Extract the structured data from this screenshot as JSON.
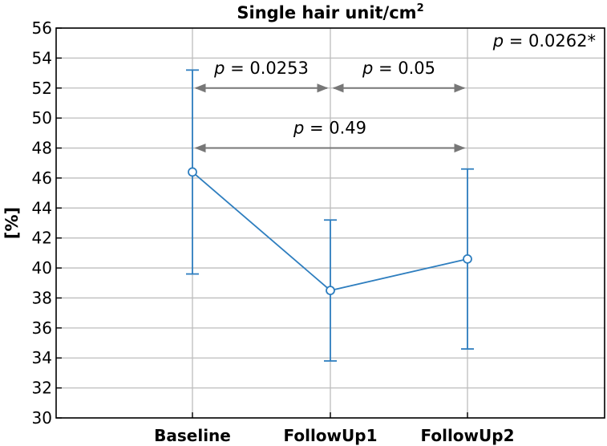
{
  "chart_data": {
    "type": "line",
    "title": "Single hair unit/cm",
    "title_superscript": "2",
    "xlabel": "",
    "ylabel": "[%]",
    "ylim": [
      30,
      56
    ],
    "yticks": [
      30,
      32,
      34,
      36,
      38,
      40,
      42,
      44,
      46,
      48,
      50,
      52,
      54,
      56
    ],
    "grid": true,
    "categories": [
      "Baseline",
      "FollowUp1",
      "FollowUp2"
    ],
    "series": [
      {
        "values": [
          46.4,
          38.5,
          40.6
        ],
        "error_low": [
          39.6,
          33.8,
          34.6
        ],
        "error_high": [
          53.2,
          43.2,
          46.6
        ],
        "color": "#2e7ebf"
      }
    ],
    "annotations": [
      {
        "text": "p = 0.0253",
        "from": "Baseline",
        "to": "FollowUp1",
        "level": 52
      },
      {
        "text": "p = 0.05",
        "from": "FollowUp1",
        "to": "FollowUp2",
        "level": 52
      },
      {
        "text": "p = 0.49",
        "from": "Baseline",
        "to": "FollowUp2",
        "level": 48
      },
      {
        "text": "p = 0.0262*",
        "position": "top-right"
      }
    ],
    "colors": {
      "series": "#2e7ebf",
      "bracket": "#777777",
      "grid": "#bdbdbd"
    }
  }
}
